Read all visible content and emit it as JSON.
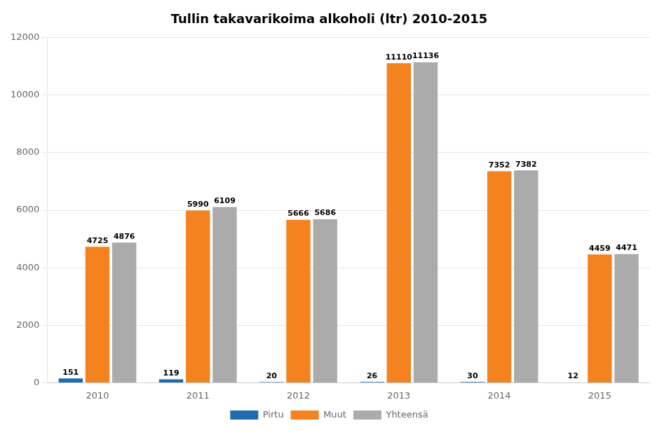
{
  "chart_data": {
    "type": "bar",
    "title": "Tullin takavarikoima alkoholi (ltr) 2010-2015",
    "categories": [
      "2010",
      "2011",
      "2012",
      "2013",
      "2014",
      "2015"
    ],
    "series": [
      {
        "name": "Pirtu",
        "color": "#1F6BB0",
        "values": [
          151,
          119,
          20,
          26,
          30,
          12
        ]
      },
      {
        "name": "Muut",
        "color": "#F4821E",
        "values": [
          4725,
          5990,
          5666,
          11110,
          7352,
          4459
        ]
      },
      {
        "name": "Yhteensä",
        "color": "#ABABAB",
        "values": [
          4876,
          6109,
          5686,
          11136,
          7382,
          4471
        ]
      }
    ],
    "ylim": [
      0,
      12000
    ],
    "yticks": [
      0,
      2000,
      4000,
      6000,
      8000,
      10000,
      12000
    ],
    "grid": true,
    "legend": "bottom",
    "data_labels": true
  }
}
